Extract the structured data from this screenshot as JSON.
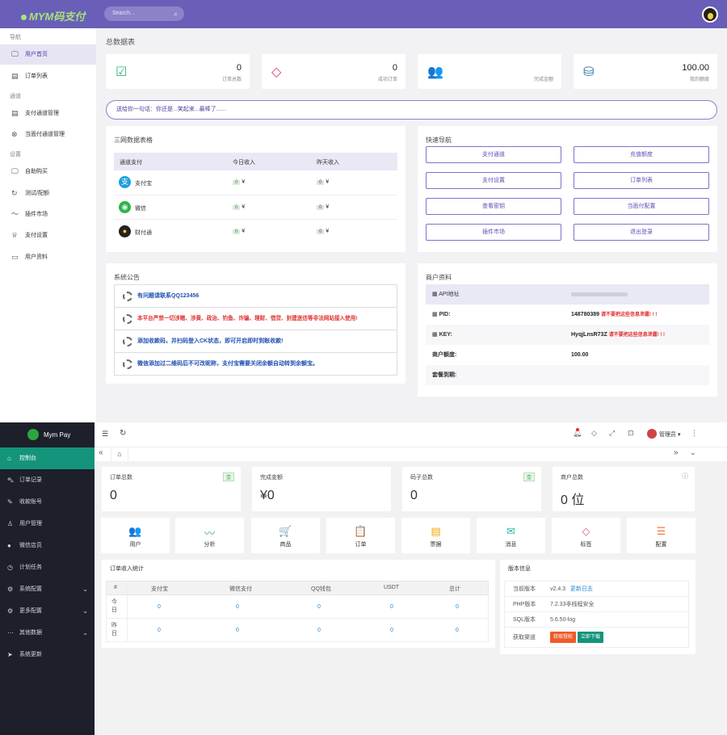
{
  "top": {
    "brand": "MYM码支付",
    "search_placeholder": "Search...",
    "sidebar": {
      "groups": [
        "导航",
        "通道",
        "设置"
      ],
      "items": [
        "用户首页",
        "订单列表",
        "支付通道管理",
        "当面付通道管理",
        "自助购买",
        "测试/配额",
        "插件市场",
        "支付设置",
        "用户资料"
      ]
    },
    "page_title": "总数据表",
    "stats": [
      {
        "value": "0",
        "label": "订单总数"
      },
      {
        "value": "0",
        "label": "成功订单"
      },
      {
        "value": "",
        "label": "完成金额"
      },
      {
        "value": "100.00",
        "label": "我的额度"
      }
    ],
    "notice": "送给你一句话：你还是...笑起来...最棒了......",
    "network": {
      "title": "三网数据表格",
      "headers": [
        "通道支付",
        "今日收入",
        "昨天收入"
      ],
      "rows": [
        {
          "name": "支付宝",
          "today": "0",
          "yesterday": "0"
        },
        {
          "name": "微信",
          "today": "0",
          "yesterday": "0"
        },
        {
          "name": "财付通",
          "today": "0",
          "yesterday": "0"
        }
      ],
      "pill_suffix": "¥"
    },
    "quicknav": {
      "title": "快速导航",
      "buttons": [
        "支付通道",
        "充值额度",
        "支付设置",
        "订单列表",
        "查看密钥",
        "当面付配置",
        "插件市场",
        "退出登录"
      ]
    },
    "announcements": {
      "title": "系统公告",
      "items": [
        {
          "text": "有问题请联系QQ123456",
          "color": "#1f4fb3"
        },
        {
          "text": "本平台严禁一切涉赌、涉黄、政治、钓鱼、诈骗、理财、借贷、封建迷信等非法网站接入使用!",
          "color": "#e0302f"
        },
        {
          "text": "添加收款码，并扫码登入CK状态，即可开启即时到账收款!",
          "color": "#1f4fb3"
        },
        {
          "text": "微信添加过二维码后不可改昵称，支付宝需要关闭余额自动转到余额宝。",
          "color": "#1f4fb3"
        }
      ]
    },
    "merchant": {
      "title": "商户资料",
      "rows": [
        {
          "key": "API地址",
          "value": "",
          "warn": ""
        },
        {
          "key": "PID:",
          "value": "148780389",
          "warn": "请不要把这些信息泄露! ! !"
        },
        {
          "key": "KEY:",
          "value": "HyqjLnsR73Z",
          "warn": "请不要把这些信息泄露! ! !"
        },
        {
          "key": "商户额度:",
          "value": "100.00",
          "warn": ""
        },
        {
          "key": "套餐到期:",
          "value": "",
          "warn": ""
        }
      ]
    }
  },
  "bottom": {
    "logo": "Mym Pay",
    "sidebar": [
      {
        "label": "控制台",
        "chevron": false
      },
      {
        "label": "订单记录",
        "chevron": false
      },
      {
        "label": "收款账号",
        "chevron": false
      },
      {
        "label": "用户管理",
        "chevron": false
      },
      {
        "label": "微信店员",
        "chevron": false
      },
      {
        "label": "计划任务",
        "chevron": false
      },
      {
        "label": "系统配置",
        "chevron": true
      },
      {
        "label": "更多配置",
        "chevron": true
      },
      {
        "label": "其他数据",
        "chevron": true
      },
      {
        "label": "系统更新",
        "chevron": false
      }
    ],
    "admin": "管理员",
    "stats": [
      {
        "label": "订单总数",
        "badge": "壹",
        "value": "0"
      },
      {
        "label": "完成金额",
        "badge": "",
        "value": "¥0"
      },
      {
        "label": "码子总数",
        "badge": "壹",
        "value": "0"
      },
      {
        "label": "商户总数",
        "badge": "",
        "value": "0 位"
      }
    ],
    "tiles": [
      {
        "label": "用户",
        "icon": "users-icon",
        "glyph": "👥",
        "color": "#3d8fe0"
      },
      {
        "label": "分析",
        "icon": "pulse-icon",
        "glyph": "〰",
        "color": "#2bb673"
      },
      {
        "label": "商品",
        "icon": "cart-icon",
        "glyph": "🛒",
        "color": "#f07b3a"
      },
      {
        "label": "订单",
        "icon": "doc-icon",
        "glyph": "📋",
        "color": "#7a7fe0"
      },
      {
        "label": "票据",
        "icon": "ticket-icon",
        "glyph": "▤",
        "color": "#f0a800"
      },
      {
        "label": "消息",
        "icon": "mail-icon",
        "glyph": "✉",
        "color": "#2bb6a2"
      },
      {
        "label": "标签",
        "icon": "tag-icon",
        "glyph": "◇",
        "color": "#e05a9a"
      },
      {
        "label": "配置",
        "icon": "sliders-icon",
        "glyph": "☰",
        "color": "#f07b3a"
      }
    ],
    "income": {
      "title": "订单收入统计",
      "headers": [
        "#",
        "支付宝",
        "微信支付",
        "QQ钱包",
        "USDT",
        "总计"
      ],
      "rows": [
        {
          "label": "今日",
          "values": [
            "0",
            "0",
            "0",
            "0",
            "0"
          ]
        },
        {
          "label": "昨日",
          "values": [
            "0",
            "0",
            "0",
            "0",
            "0"
          ]
        }
      ]
    },
    "version": {
      "title": "版本信息",
      "current_label": "当前版本",
      "current_value": "v2.4.3",
      "update_link": "更新日志",
      "php_label": "PHP版本",
      "php_value": "7.2.33非线程安全",
      "sql_label": "SQL版本",
      "sql_value": "5.6.50-log",
      "channel_label": "获取渠道",
      "btn_auth": "获取授权",
      "btn_download": "立即下载"
    }
  }
}
